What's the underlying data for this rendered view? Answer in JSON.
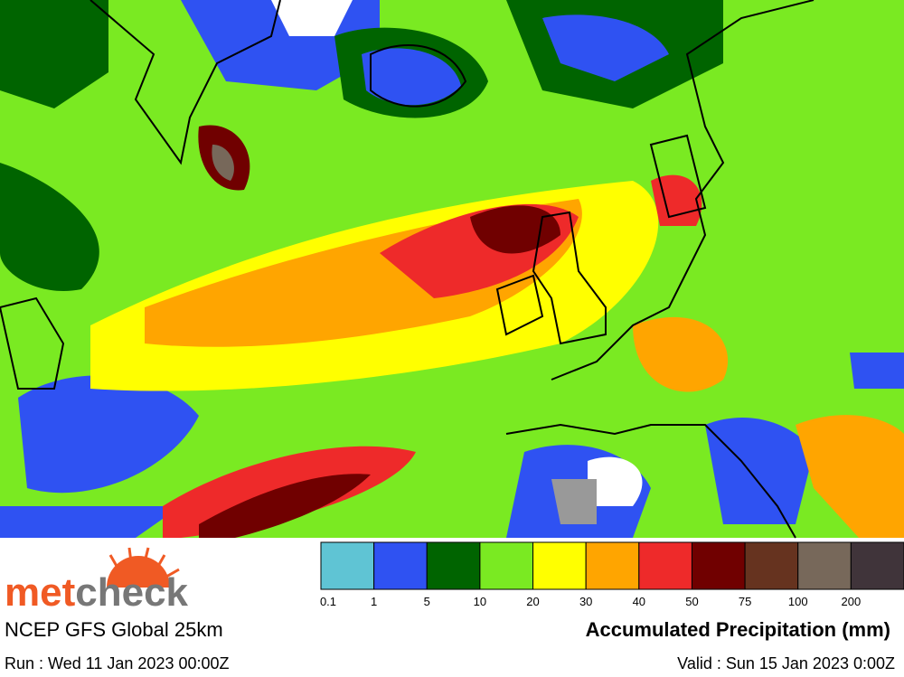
{
  "logo": {
    "parts": [
      "met",
      "check"
    ]
  },
  "model": "NCEP GFS Global 25km",
  "run": "Run : Wed 11 Jan 2023 00:00Z",
  "valid": "Valid : Sun 15 Jan 2023 0:00Z",
  "legend": {
    "title": "Accumulated Precipitation (mm)",
    "items": [
      {
        "label": 0.1,
        "color": "#5fc4d4"
      },
      {
        "label": 1,
        "color": "#2f52f2"
      },
      {
        "label": 5,
        "color": "#006400"
      },
      {
        "label": 10,
        "color": "#7aea22"
      },
      {
        "label": 20,
        "color": "#ffff00"
      },
      {
        "label": 30,
        "color": "#ffa500"
      },
      {
        "label": 40,
        "color": "#ee2a2a"
      },
      {
        "label": 50,
        "color": "#700000"
      },
      {
        "label": 75,
        "color": "#66331f"
      },
      {
        "label": 100,
        "color": "#77685a"
      },
      {
        "label": 200,
        "color": "#40343a"
      }
    ]
  }
}
